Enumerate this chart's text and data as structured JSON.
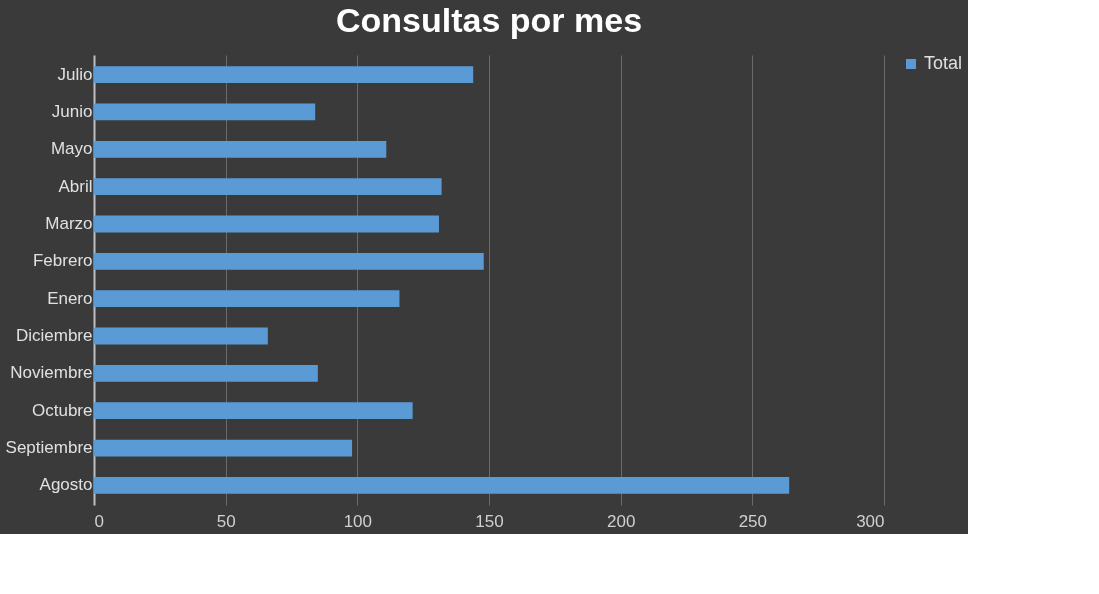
{
  "chart_data": {
    "type": "bar",
    "orientation": "horizontal",
    "title": "Consultas por mes",
    "categories": [
      "Julio",
      "Junio",
      "Mayo",
      "Abril",
      "Marzo",
      "Febrero",
      "Enero",
      "Diciembre",
      "Noviembre",
      "Octubre",
      "Septiembre",
      "Agosto"
    ],
    "series": [
      {
        "name": "Total",
        "color": "#5b9bd5",
        "values": [
          144,
          84,
          111,
          132,
          131,
          148,
          116,
          66,
          85,
          121,
          98,
          264
        ]
      }
    ],
    "xlim": [
      0,
      300
    ],
    "xticks": [
      0,
      50,
      100,
      150,
      200,
      250,
      300
    ],
    "grid": "x",
    "legend": "right"
  }
}
